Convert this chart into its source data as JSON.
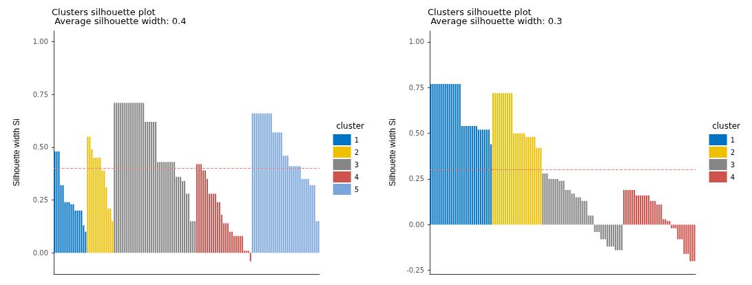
{
  "chart_data": [
    {
      "type": "bar",
      "title": "Clusters silhouette plot",
      "subtitle": " Average silhouette width: 0.4",
      "ylabel": "Silhouette width Si",
      "legend_title": "cluster",
      "legend": "right",
      "grid": false,
      "tick_labels": "y",
      "ylim": [
        -0.1,
        1.05
      ],
      "yticks": [
        {
          "value": 0,
          "label": "0.00"
        },
        {
          "value": 0.25,
          "label": "0.25"
        },
        {
          "value": 0.5,
          "label": "0.50"
        },
        {
          "value": 0.75,
          "label": "0.75"
        },
        {
          "value": 1,
          "label": "1.00"
        }
      ],
      "ref_lines": [
        {
          "axis": "y",
          "value": 0.4,
          "color": "#f08080",
          "line_style": "dashed"
        }
      ],
      "categories": [
        null,
        null,
        null,
        null,
        null,
        null,
        null,
        null,
        null,
        null,
        null,
        null,
        null,
        null,
        null,
        null,
        null,
        null,
        null,
        null,
        null,
        null,
        null,
        null,
        null,
        null,
        null,
        null,
        null,
        null,
        null,
        null,
        null,
        null,
        null,
        null,
        null,
        null,
        null,
        null,
        null,
        null,
        null,
        null,
        null,
        null,
        null,
        null,
        null,
        null,
        null,
        null,
        null,
        null,
        null,
        null,
        null,
        null,
        null,
        null,
        null,
        null,
        null,
        null,
        null,
        null,
        null,
        null,
        null,
        null,
        null,
        null,
        null,
        null,
        null,
        null,
        null,
        null,
        null,
        null,
        null,
        null,
        null,
        null,
        null,
        null,
        null,
        null,
        null,
        null,
        null,
        null,
        null,
        null,
        null,
        null,
        null,
        null,
        null,
        null,
        null,
        null,
        null,
        null,
        null,
        null,
        null,
        null,
        null,
        null,
        null,
        null,
        null,
        null,
        null,
        null,
        null,
        null,
        null,
        null,
        null,
        null,
        null,
        null,
        null,
        null,
        null,
        null,
        null
      ],
      "series": [
        {
          "name": "1",
          "color": "#0073c2",
          "values": [
            0.48,
            0.48,
            0.48,
            0.32,
            0.32,
            0.24,
            0.24,
            0.24,
            0.23,
            0.23,
            0.2,
            0.2,
            0.2,
            0.2,
            0.13,
            0.1,
            null,
            null,
            null,
            null,
            null,
            null,
            null,
            null,
            null,
            null,
            null,
            null,
            null,
            null,
            null,
            null,
            null,
            null,
            null,
            null,
            null,
            null,
            null,
            null,
            null,
            null,
            null,
            null,
            null,
            null,
            null,
            null,
            null,
            null,
            null,
            null,
            null,
            null,
            null,
            null,
            null,
            null,
            null,
            null,
            null,
            null,
            null,
            null,
            null,
            null,
            null,
            null,
            null,
            null,
            null,
            null,
            null,
            null,
            null,
            null,
            null,
            null,
            null,
            null,
            null,
            null,
            null,
            null,
            null,
            null,
            null,
            null,
            null,
            null,
            null,
            null,
            null,
            null,
            null,
            null,
            null,
            null,
            null,
            null,
            null,
            null,
            null,
            null,
            null,
            null,
            null,
            null,
            null,
            null,
            null,
            null,
            null,
            null,
            null,
            null,
            null,
            null,
            null,
            null,
            null,
            null,
            null,
            null,
            null,
            null,
            null,
            null,
            null
          ]
        },
        {
          "name": "2",
          "color": "#efc000",
          "values": [
            null,
            null,
            null,
            null,
            null,
            null,
            null,
            null,
            null,
            null,
            null,
            null,
            null,
            null,
            null,
            null,
            0.55,
            0.55,
            0.49,
            0.45,
            0.45,
            0.45,
            0.45,
            0.39,
            0.39,
            0.31,
            0.21,
            0.21,
            0.15,
            null,
            null,
            null,
            null,
            null,
            null,
            null,
            null,
            null,
            null,
            null,
            null,
            null,
            null,
            null,
            null,
            null,
            null,
            null,
            null,
            null,
            null,
            null,
            null,
            null,
            null,
            null,
            null,
            null,
            null,
            null,
            null,
            null,
            null,
            null,
            null,
            null,
            null,
            null,
            null,
            null,
            null,
            null,
            null,
            null,
            null,
            null,
            null,
            null,
            null,
            null,
            null,
            null,
            null,
            null,
            null,
            null,
            null,
            null,
            null,
            null,
            null,
            null,
            null,
            null,
            null,
            null,
            null,
            null,
            null,
            null,
            null,
            null,
            null,
            null,
            null,
            null,
            null,
            null,
            null,
            null,
            null,
            null,
            null,
            null,
            null,
            null,
            null,
            null,
            null,
            null,
            null,
            null,
            null,
            null,
            null,
            null,
            null,
            null,
            null
          ]
        },
        {
          "name": "3",
          "color": "#868686",
          "values": [
            null,
            null,
            null,
            null,
            null,
            null,
            null,
            null,
            null,
            null,
            null,
            null,
            null,
            null,
            null,
            null,
            null,
            null,
            null,
            null,
            null,
            null,
            null,
            null,
            null,
            null,
            null,
            null,
            null,
            0.71,
            0.71,
            0.71,
            0.71,
            0.71,
            0.71,
            0.71,
            0.71,
            0.71,
            0.71,
            0.71,
            0.71,
            0.71,
            0.71,
            0.71,
            0.62,
            0.62,
            0.62,
            0.62,
            0.62,
            0.62,
            0.43,
            0.43,
            0.43,
            0.43,
            0.43,
            0.43,
            0.43,
            0.43,
            0.43,
            0.36,
            0.36,
            0.36,
            0.34,
            0.34,
            0.28,
            0.28,
            0.15,
            0.15,
            0.15,
            null,
            null,
            null,
            null,
            null,
            null,
            null,
            null,
            null,
            null,
            null,
            null,
            null,
            null,
            null,
            null,
            null,
            null,
            null,
            null,
            null,
            null,
            null,
            null,
            null,
            null,
            null,
            null,
            null,
            null,
            null,
            null,
            null,
            null,
            null,
            null,
            null,
            null,
            null,
            null,
            null,
            null,
            null,
            null,
            null,
            null,
            null,
            null,
            null,
            null,
            null,
            null,
            null,
            null,
            null,
            null,
            null,
            null,
            null,
            null
          ]
        },
        {
          "name": "4",
          "color": "#cd534c",
          "values": [
            null,
            null,
            null,
            null,
            null,
            null,
            null,
            null,
            null,
            null,
            null,
            null,
            null,
            null,
            null,
            null,
            null,
            null,
            null,
            null,
            null,
            null,
            null,
            null,
            null,
            null,
            null,
            null,
            null,
            null,
            null,
            null,
            null,
            null,
            null,
            null,
            null,
            null,
            null,
            null,
            null,
            null,
            null,
            null,
            null,
            null,
            null,
            null,
            null,
            null,
            null,
            null,
            null,
            null,
            null,
            null,
            null,
            null,
            null,
            null,
            null,
            null,
            null,
            null,
            null,
            null,
            null,
            null,
            null,
            0.42,
            0.42,
            0.42,
            0.39,
            0.39,
            0.35,
            0.28,
            0.28,
            0.28,
            0.28,
            0.24,
            0.24,
            0.18,
            0.14,
            0.14,
            0.14,
            0.1,
            0.1,
            0.08,
            0.08,
            0.08,
            0.08,
            0.08,
            0.01,
            0.01,
            0.01,
            -0.04,
            null,
            null,
            null,
            null,
            null,
            null,
            null,
            null,
            null,
            null,
            null,
            null,
            null,
            null,
            null,
            null,
            null,
            null,
            null,
            null,
            null,
            null,
            null,
            null,
            null,
            null,
            null,
            null,
            null,
            null,
            null,
            null,
            null
          ]
        },
        {
          "name": "5",
          "color": "#7aa6dc",
          "values": [
            null,
            null,
            null,
            null,
            null,
            null,
            null,
            null,
            null,
            null,
            null,
            null,
            null,
            null,
            null,
            null,
            null,
            null,
            null,
            null,
            null,
            null,
            null,
            null,
            null,
            null,
            null,
            null,
            null,
            null,
            null,
            null,
            null,
            null,
            null,
            null,
            null,
            null,
            null,
            null,
            null,
            null,
            null,
            null,
            null,
            null,
            null,
            null,
            null,
            null,
            null,
            null,
            null,
            null,
            null,
            null,
            null,
            null,
            null,
            null,
            null,
            null,
            null,
            null,
            null,
            null,
            null,
            null,
            null,
            null,
            null,
            null,
            null,
            null,
            null,
            null,
            null,
            null,
            null,
            null,
            null,
            null,
            null,
            null,
            null,
            null,
            null,
            null,
            null,
            null,
            null,
            null,
            null,
            null,
            null,
            null,
            0.66,
            0.66,
            0.66,
            0.66,
            0.66,
            0.66,
            0.66,
            0.66,
            0.66,
            0.66,
            0.57,
            0.57,
            0.57,
            0.57,
            0.57,
            0.46,
            0.46,
            0.46,
            0.41,
            0.41,
            0.41,
            0.41,
            0.41,
            0.41,
            0.35,
            0.35,
            0.35,
            0.35,
            0.32,
            0.32,
            0.32,
            0.15,
            0.15
          ]
        }
      ]
    },
    {
      "type": "bar",
      "title": "Clusters silhouette plot",
      "subtitle": " Average silhouette width: 0.3",
      "ylabel": "Silhouette width Si",
      "legend_title": "cluster",
      "legend": "right",
      "grid": false,
      "tick_labels": "y",
      "ylim": [
        -0.27,
        1.06
      ],
      "yticks": [
        {
          "value": -0.25,
          "label": "-0.25"
        },
        {
          "value": 0,
          "label": "0.00"
        },
        {
          "value": 0.25,
          "label": "0.25"
        },
        {
          "value": 0.5,
          "label": "0.50"
        },
        {
          "value": 0.75,
          "label": "0.75"
        },
        {
          "value": 1,
          "label": "1.00"
        }
      ],
      "ref_lines": [
        {
          "axis": "y",
          "value": 0.3,
          "color": "#f08080",
          "line_style": "dashed"
        }
      ],
      "categories": [
        null,
        null,
        null,
        null,
        null,
        null,
        null,
        null,
        null,
        null,
        null,
        null,
        null,
        null,
        null,
        null,
        null,
        null,
        null,
        null,
        null,
        null,
        null,
        null,
        null,
        null,
        null,
        null,
        null,
        null,
        null,
        null,
        null,
        null,
        null,
        null,
        null,
        null,
        null,
        null,
        null,
        null,
        null,
        null,
        null,
        null,
        null,
        null,
        null,
        null,
        null,
        null,
        null,
        null,
        null,
        null,
        null,
        null,
        null,
        null,
        null,
        null,
        null,
        null,
        null,
        null,
        null,
        null,
        null,
        null,
        null,
        null,
        null,
        null,
        null,
        null,
        null,
        null,
        null,
        null,
        null,
        null,
        null,
        null,
        null,
        null,
        null,
        null,
        null,
        null,
        null,
        null,
        null,
        null,
        null,
        null,
        null,
        null,
        null,
        null,
        null,
        null,
        null,
        null,
        null,
        null,
        null,
        null,
        null,
        null,
        null,
        null,
        null,
        null,
        null,
        null,
        null,
        null,
        null,
        null,
        null,
        null,
        null,
        null,
        null,
        null,
        null,
        null
      ],
      "series": [
        {
          "name": "1",
          "color": "#0073c2",
          "values": [
            0.77,
            0.77,
            0.77,
            0.77,
            0.77,
            0.77,
            0.77,
            0.77,
            0.77,
            0.77,
            0.77,
            0.77,
            0.77,
            0.77,
            0.77,
            0.54,
            0.54,
            0.54,
            0.54,
            0.54,
            0.54,
            0.54,
            0.54,
            0.52,
            0.52,
            0.52,
            0.52,
            0.52,
            0.52,
            0.44,
            null,
            null,
            null,
            null,
            null,
            null,
            null,
            null,
            null,
            null,
            null,
            null,
            null,
            null,
            null,
            null,
            null,
            null,
            null,
            null,
            null,
            null,
            null,
            null,
            null,
            null,
            null,
            null,
            null,
            null,
            null,
            null,
            null,
            null,
            null,
            null,
            null,
            null,
            null,
            null,
            null,
            null,
            null,
            null,
            null,
            null,
            null,
            null,
            null,
            null,
            null,
            null,
            null,
            null,
            null,
            null,
            null,
            null,
            null,
            null,
            null,
            null,
            null,
            null,
            null,
            null,
            null,
            null,
            null,
            null,
            null,
            null,
            null,
            null,
            null,
            null,
            null,
            null,
            null,
            null,
            null,
            null,
            null,
            null,
            null,
            null,
            null,
            null,
            null,
            null,
            null,
            null,
            null,
            null,
            null,
            null,
            null,
            null
          ]
        },
        {
          "name": "2",
          "color": "#efc000",
          "values": [
            null,
            null,
            null,
            null,
            null,
            null,
            null,
            null,
            null,
            null,
            null,
            null,
            null,
            null,
            null,
            null,
            null,
            null,
            null,
            null,
            null,
            null,
            null,
            null,
            null,
            null,
            null,
            null,
            null,
            null,
            0.72,
            0.72,
            0.72,
            0.72,
            0.72,
            0.72,
            0.72,
            0.72,
            0.72,
            0.72,
            0.5,
            0.5,
            0.5,
            0.5,
            0.5,
            0.5,
            0.48,
            0.48,
            0.48,
            0.48,
            0.48,
            0.42,
            0.42,
            0.42,
            null,
            null,
            null,
            null,
            null,
            null,
            null,
            null,
            null,
            null,
            null,
            null,
            null,
            null,
            null,
            null,
            null,
            null,
            null,
            null,
            null,
            null,
            null,
            null,
            null,
            null,
            null,
            null,
            null,
            null,
            null,
            null,
            null,
            null,
            null,
            null,
            null,
            null,
            null,
            null,
            null,
            null,
            null,
            null,
            null,
            null,
            null,
            null,
            null,
            null,
            null,
            null,
            null,
            null,
            null,
            null,
            null,
            null,
            null,
            null,
            null,
            null,
            null,
            null,
            null,
            null,
            null,
            null,
            null,
            null,
            null,
            null,
            null,
            null
          ]
        },
        {
          "name": "3",
          "color": "#868686",
          "values": [
            null,
            null,
            null,
            null,
            null,
            null,
            null,
            null,
            null,
            null,
            null,
            null,
            null,
            null,
            null,
            null,
            null,
            null,
            null,
            null,
            null,
            null,
            null,
            null,
            null,
            null,
            null,
            null,
            null,
            null,
            null,
            null,
            null,
            null,
            null,
            null,
            null,
            null,
            null,
            null,
            null,
            null,
            null,
            null,
            null,
            null,
            null,
            null,
            null,
            null,
            null,
            null,
            null,
            null,
            0.28,
            0.28,
            0.28,
            0.25,
            0.25,
            0.25,
            0.25,
            0.25,
            0.24,
            0.24,
            0.24,
            0.19,
            0.19,
            0.19,
            0.17,
            0.17,
            0.15,
            0.15,
            0.15,
            0.13,
            0.13,
            0.13,
            0.05,
            0.05,
            0.05,
            -0.04,
            -0.04,
            -0.04,
            -0.08,
            -0.08,
            -0.08,
            -0.12,
            -0.12,
            -0.12,
            -0.12,
            -0.14,
            -0.14,
            -0.14,
            -0.14,
            null,
            null,
            null,
            null,
            null,
            null,
            null,
            null,
            null,
            null,
            null,
            null,
            null,
            null,
            null,
            null,
            null,
            null,
            null,
            null,
            null,
            null,
            null,
            null,
            null,
            null,
            null,
            null,
            null,
            null,
            null,
            null,
            null,
            null,
            null
          ]
        },
        {
          "name": "4",
          "color": "#cd534c",
          "values": [
            null,
            null,
            null,
            null,
            null,
            null,
            null,
            null,
            null,
            null,
            null,
            null,
            null,
            null,
            null,
            null,
            null,
            null,
            null,
            null,
            null,
            null,
            null,
            null,
            null,
            null,
            null,
            null,
            null,
            null,
            null,
            null,
            null,
            null,
            null,
            null,
            null,
            null,
            null,
            null,
            null,
            null,
            null,
            null,
            null,
            null,
            null,
            null,
            null,
            null,
            null,
            null,
            null,
            null,
            null,
            null,
            null,
            null,
            null,
            null,
            null,
            null,
            null,
            null,
            null,
            null,
            null,
            null,
            null,
            null,
            null,
            null,
            null,
            null,
            null,
            null,
            null,
            null,
            null,
            null,
            null,
            null,
            null,
            null,
            null,
            null,
            null,
            null,
            null,
            null,
            null,
            null,
            null,
            0.19,
            0.19,
            0.19,
            0.19,
            0.19,
            0.19,
            0.16,
            0.16,
            0.16,
            0.16,
            0.16,
            0.16,
            0.16,
            0.13,
            0.13,
            0.13,
            0.11,
            0.11,
            0.11,
            0.03,
            0.03,
            0.02,
            0.02,
            -0.02,
            -0.02,
            -0.02,
            -0.08,
            -0.08,
            -0.08,
            -0.16,
            -0.16,
            -0.16,
            -0.2,
            -0.2,
            -0.2
          ]
        }
      ]
    }
  ]
}
